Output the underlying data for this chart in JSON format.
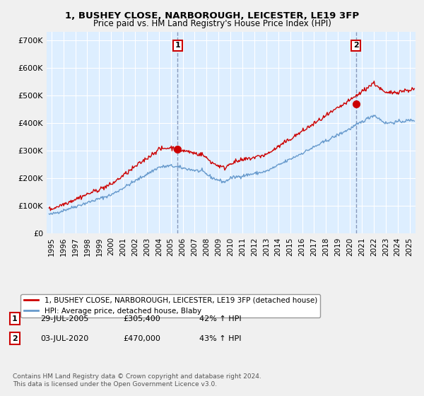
{
  "title1": "1, BUSHEY CLOSE, NARBOROUGH, LEICESTER, LE19 3FP",
  "title2": "Price paid vs. HM Land Registry's House Price Index (HPI)",
  "ylabel_ticks": [
    "£0",
    "£100K",
    "£200K",
    "£300K",
    "£400K",
    "£500K",
    "£600K",
    "£700K"
  ],
  "ytick_values": [
    0,
    100000,
    200000,
    300000,
    400000,
    500000,
    600000,
    700000
  ],
  "ylim": [
    0,
    730000
  ],
  "xlim_start": 1994.6,
  "xlim_end": 2025.5,
  "xtick_years": [
    1995,
    1996,
    1997,
    1998,
    1999,
    2000,
    2001,
    2002,
    2003,
    2004,
    2005,
    2006,
    2007,
    2008,
    2009,
    2010,
    2011,
    2012,
    2013,
    2014,
    2015,
    2016,
    2017,
    2018,
    2019,
    2020,
    2021,
    2022,
    2023,
    2024,
    2025
  ],
  "red_color": "#cc0000",
  "blue_color": "#6699cc",
  "blue_fill": "#ddeeff",
  "grid_color": "#cccccc",
  "bg_color": "#f0f0f0",
  "plot_bg": "#ddeeff",
  "vline_color": "#8899bb",
  "sale1_x": 2005.57,
  "sale1_y": 305400,
  "sale2_x": 2020.5,
  "sale2_y": 470000,
  "sale1_label": "1",
  "sale2_label": "2",
  "legend_line1": "1, BUSHEY CLOSE, NARBOROUGH, LEICESTER, LE19 3FP (detached house)",
  "legend_line2": "HPI: Average price, detached house, Blaby",
  "note1_label": "1",
  "note1_date": "29-JUL-2005",
  "note1_price": "£305,400",
  "note1_hpi": "42% ↑ HPI",
  "note2_label": "2",
  "note2_date": "03-JUL-2020",
  "note2_price": "£470,000",
  "note2_hpi": "43% ↑ HPI",
  "footnote": "Contains HM Land Registry data © Crown copyright and database right 2024.\nThis data is licensed under the Open Government Licence v3.0."
}
